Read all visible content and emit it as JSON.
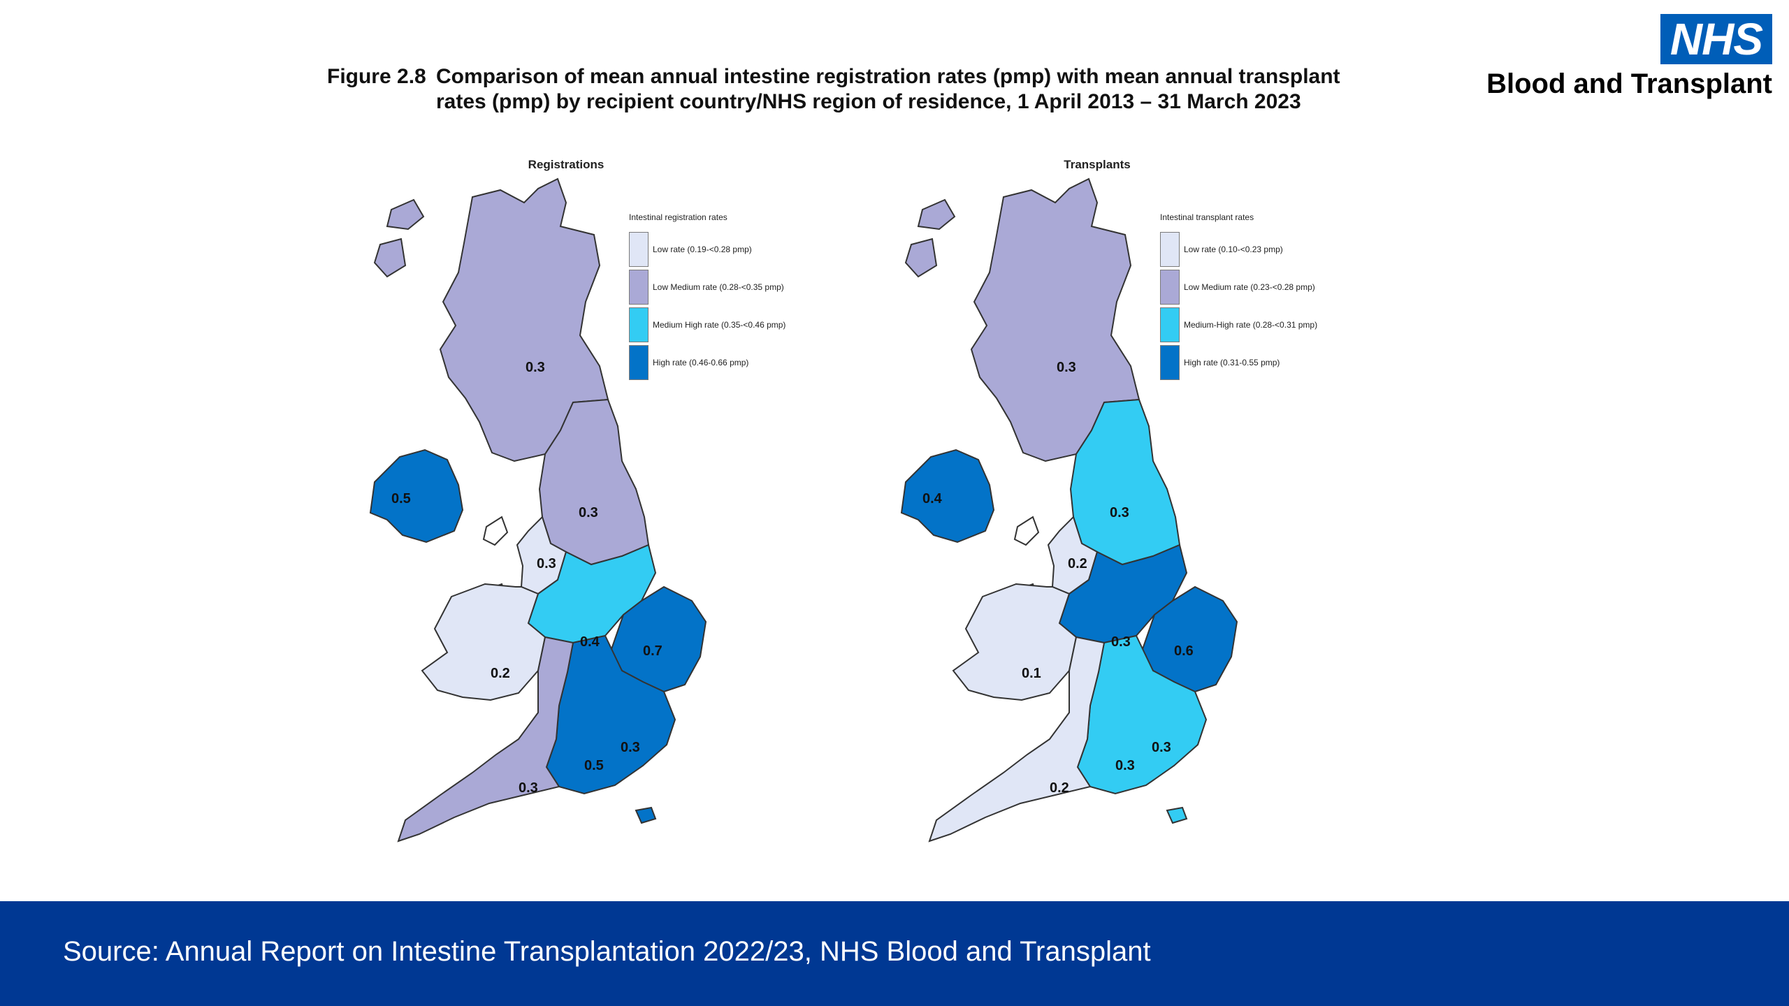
{
  "logo": {
    "badge": "NHS",
    "name": "Blood and Transplant"
  },
  "figure": {
    "number": "Figure 2.8",
    "title": "Comparison of mean annual intestine registration rates (pmp) with mean annual transplant rates (pmp) by recipient country/NHS region of residence, 1 April 2013 – 31 March 2023"
  },
  "colors": {
    "low": "#e0e6f6",
    "low_medium": "#aaa9d6",
    "medium_high": "#33ccf3",
    "high": "#0373c8",
    "footer": "#003893",
    "nhs_blue": "#005eb8"
  },
  "maps": {
    "registrations": {
      "title": "Registrations",
      "legend_title": "Intestinal registration rates",
      "legend": [
        {
          "label": "Low rate (0.19-<0.28 pmp)",
          "class": "low"
        },
        {
          "label": "Low Medium rate (0.28-<0.35 pmp)",
          "class": "low_medium"
        },
        {
          "label": "Medium High rate (0.35-<0.46 pmp)",
          "class": "medium_high"
        },
        {
          "label": "High rate (0.46-0.66 pmp)",
          "class": "high"
        }
      ],
      "regions": {
        "scotland": {
          "value": "0.3",
          "class": "low_medium"
        },
        "northern_ireland": {
          "value": "0.5",
          "class": "high"
        },
        "north_east_yorkshire": {
          "value": "0.3",
          "class": "low_medium"
        },
        "north_west": {
          "value": "0.3",
          "class": "low"
        },
        "wales": {
          "value": "0.2",
          "class": "low"
        },
        "midlands": {
          "value": "0.4",
          "class": "medium_high"
        },
        "east_of_england": {
          "value": "0.7",
          "class": "high"
        },
        "london": {
          "value": "0.3",
          "class": "low_medium"
        },
        "south_east": {
          "value": "0.5",
          "class": "high"
        },
        "south_west": {
          "value": "0.3",
          "class": "low_medium"
        }
      }
    },
    "transplants": {
      "title": "Transplants",
      "legend_title": "Intestinal transplant rates",
      "legend": [
        {
          "label": "Low rate (0.10-<0.23 pmp)",
          "class": "low"
        },
        {
          "label": "Low Medium rate (0.23-<0.28 pmp)",
          "class": "low_medium"
        },
        {
          "label": "Medium-High rate (0.28-<0.31 pmp)",
          "class": "medium_high"
        },
        {
          "label": "High rate (0.31-0.55 pmp)",
          "class": "high"
        }
      ],
      "regions": {
        "scotland": {
          "value": "0.3",
          "class": "low_medium"
        },
        "northern_ireland": {
          "value": "0.4",
          "class": "high"
        },
        "north_east_yorkshire": {
          "value": "0.3",
          "class": "medium_high"
        },
        "north_west": {
          "value": "0.2",
          "class": "low"
        },
        "wales": {
          "value": "0.1",
          "class": "low"
        },
        "midlands": {
          "value": "0.3",
          "class": "high"
        },
        "east_of_england": {
          "value": "0.6",
          "class": "high"
        },
        "london": {
          "value": "0.3",
          "class": "low_medium"
        },
        "south_east": {
          "value": "0.3",
          "class": "medium_high"
        },
        "south_west": {
          "value": "0.2",
          "class": "low"
        }
      }
    }
  },
  "footer": {
    "source": "Source: Annual Report on Intestine Transplantation 2022/23, NHS Blood and Transplant"
  }
}
